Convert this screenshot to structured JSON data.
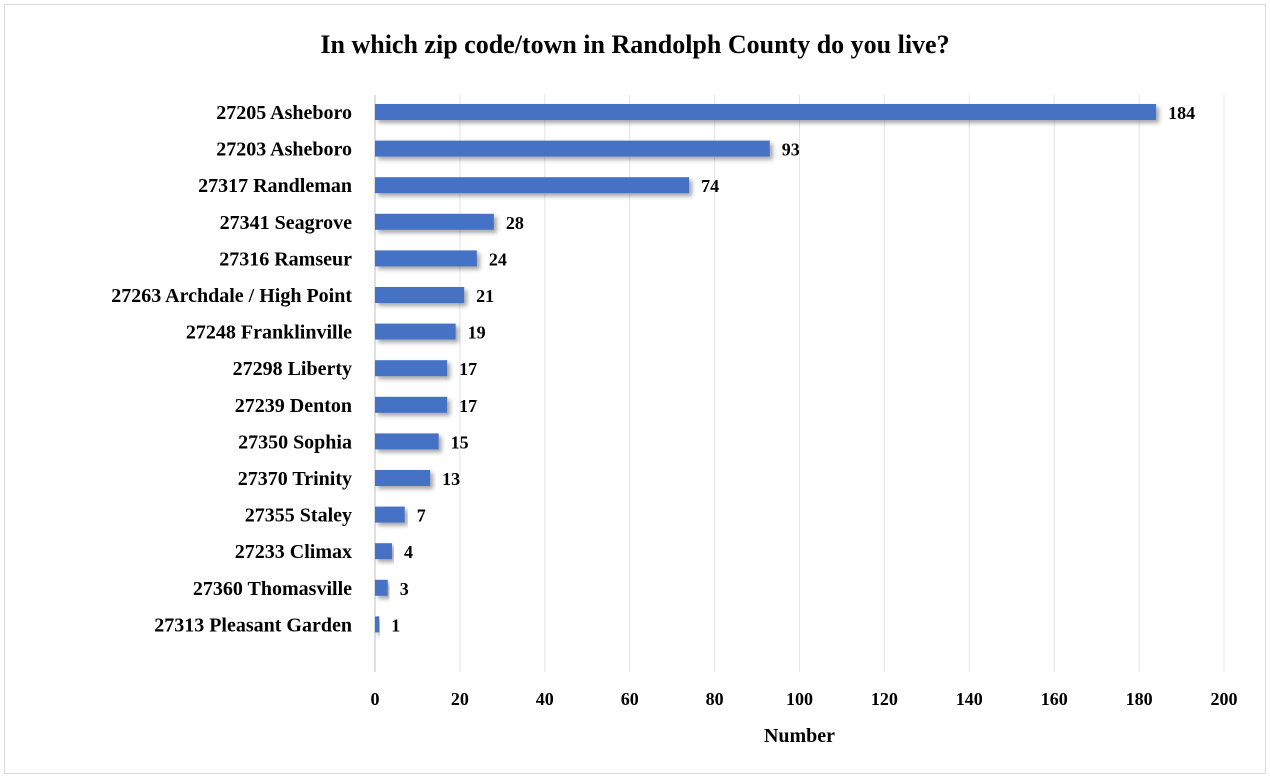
{
  "chart_data": {
    "type": "bar",
    "orientation": "horizontal",
    "title": "In which zip code/town in Randolph County do you live?",
    "xlabel": "Number",
    "ylabel": "",
    "xlim": [
      0,
      200
    ],
    "x_ticks": [
      0,
      20,
      40,
      60,
      80,
      100,
      120,
      140,
      160,
      180,
      200
    ],
    "grid": "vertical",
    "bar_color": "#4472C4",
    "categories": [
      "27205 Asheboro",
      "27203 Asheboro",
      "27317 Randleman",
      "27341 Seagrove ",
      "27316 Ramseur",
      "27263 Archdale / High Point",
      "27248 Franklinville",
      "27298 Liberty",
      "27239 Denton",
      "27350 Sophia",
      "27370 Trinity",
      "27355 Staley",
      "27233 Climax",
      "27360 Thomasville",
      "27313 Pleasant Garden"
    ],
    "values": [
      184,
      93,
      74,
      28,
      24,
      21,
      19,
      17,
      17,
      15,
      13,
      7,
      4,
      3,
      1
    ]
  }
}
